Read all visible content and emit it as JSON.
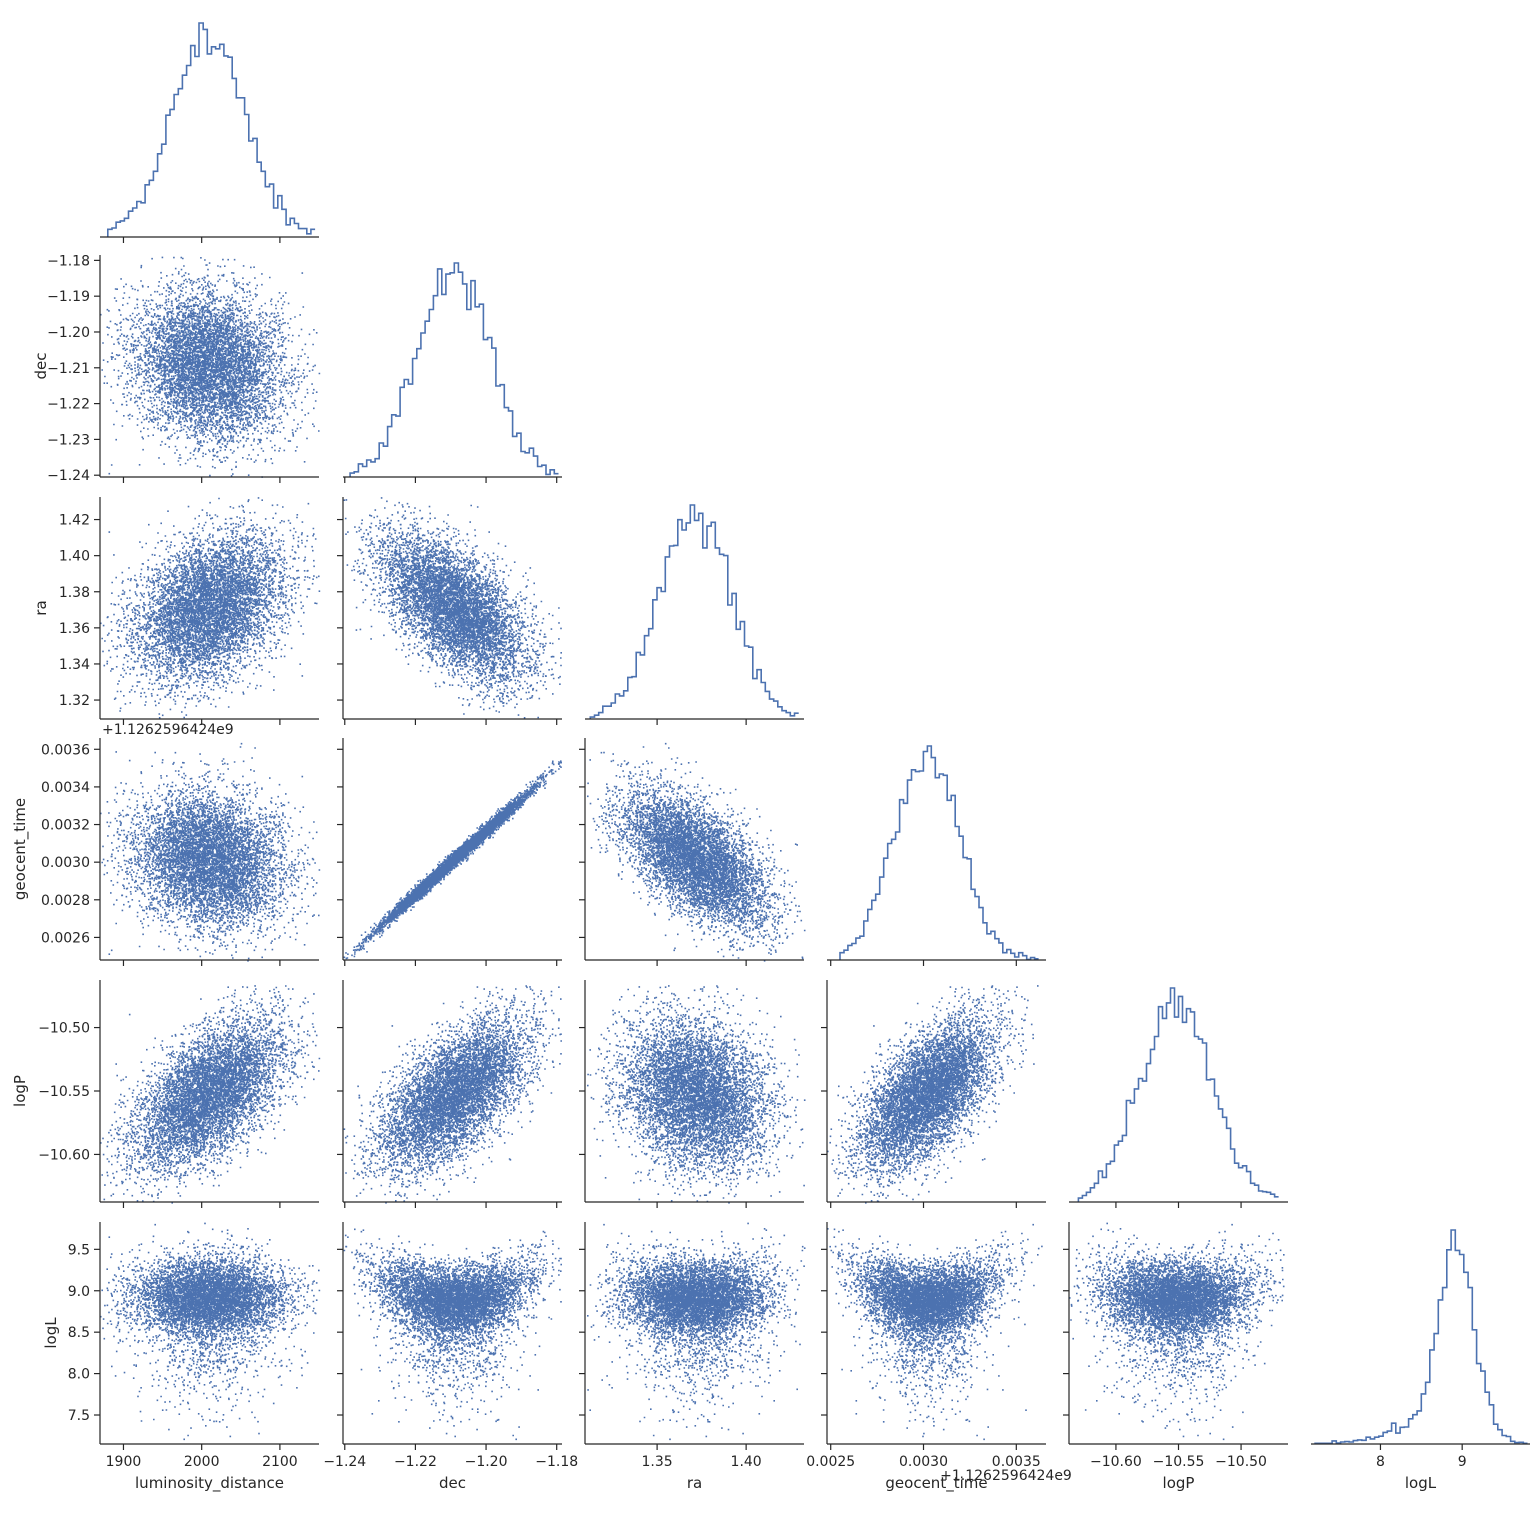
{
  "chart_data": {
    "type": "corner",
    "parameters": [
      "luminosity_distance",
      "dec",
      "ra",
      "geocent_time",
      "logP",
      "logL"
    ],
    "axis_labels": [
      "luminosity_distance",
      "dec",
      "ra",
      "geocent_time",
      "logP",
      "logL"
    ],
    "offset_text": "+1.1262596424e9",
    "colors": {
      "marker": "#4c72b0",
      "axis": "#262626",
      "background": "#ffffff"
    },
    "ranges": [
      [
        1870,
        2150
      ],
      [
        -1.2405,
        -1.1785
      ],
      [
        1.3095,
        1.4325
      ],
      [
        0.00248,
        0.00366
      ],
      [
        -10.6375,
        -10.4625
      ],
      [
        7.15,
        9.83
      ]
    ],
    "ticks": [
      [
        1900,
        2000,
        2100
      ],
      [
        -1.24,
        -1.22,
        -1.2,
        -1.18
      ],
      [
        1.32,
        1.34,
        1.36,
        1.38,
        1.4,
        1.42
      ],
      [
        0.0026,
        0.0028,
        0.003,
        0.0032,
        0.0034,
        0.0036
      ],
      [
        -10.6,
        -10.55,
        -10.5
      ],
      [
        7.5,
        8.0,
        8.5,
        9.0,
        9.5
      ]
    ],
    "tick_labels_x": [
      [
        "1900",
        "2000",
        "2100"
      ],
      [
        "−1.24",
        "−1.22",
        "−1.20",
        "−1.18"
      ],
      [
        "1.35",
        "1.40"
      ],
      [
        "0.0025",
        "0.0030",
        "0.0035"
      ],
      [
        "−10.60",
        "−10.55",
        "−10.50"
      ],
      [
        "8",
        "9"
      ]
    ],
    "tick_values_x": [
      [
        1900,
        2000,
        2100
      ],
      [
        -1.24,
        -1.22,
        -1.2,
        -1.18
      ],
      [
        1.35,
        1.4
      ],
      [
        0.0025,
        0.003,
        0.0035
      ],
      [
        -10.6,
        -10.55,
        -10.5
      ],
      [
        8,
        9
      ]
    ],
    "tick_labels_y": [
      null,
      [
        "−1.24",
        "−1.23",
        "−1.22",
        "−1.21",
        "−1.20",
        "−1.19",
        "−1.18"
      ],
      [
        "1.32",
        "1.34",
        "1.36",
        "1.38",
        "1.40",
        "1.42"
      ],
      [
        "0.0026",
        "0.0028",
        "0.0030",
        "0.0032",
        "0.0034",
        "0.0036"
      ],
      [
        "−10.60",
        "−10.55",
        "−10.50"
      ],
      [
        "7.5",
        "8.0",
        "8.5",
        "9.0",
        "9.5"
      ]
    ],
    "tick_values_y": [
      null,
      [
        -1.24,
        -1.23,
        -1.22,
        -1.21,
        -1.2,
        -1.19,
        -1.18
      ],
      [
        1.32,
        1.34,
        1.36,
        1.38,
        1.4,
        1.42
      ],
      [
        0.0026,
        0.0028,
        0.003,
        0.0032,
        0.0034,
        0.0036
      ],
      [
        -10.6,
        -10.55,
        -10.5
      ],
      [
        7.5,
        8.0,
        8.5,
        9.0,
        9.5
      ]
    ],
    "marginals": [
      {
        "param": "luminosity_distance",
        "type": "step-histogram",
        "bins": [
          1880,
          2145
        ],
        "peak_near": 2000
      },
      {
        "param": "dec",
        "type": "step-histogram",
        "bins": [
          -1.2385,
          -1.1795
        ],
        "peak_near": -1.209
      },
      {
        "param": "ra",
        "type": "step-histogram",
        "bins": [
          1.3125,
          1.4295
        ],
        "peak_near": 1.37
      },
      {
        "param": "geocent_time",
        "type": "step-histogram",
        "bins": [
          0.00255,
          0.00362
        ],
        "peak_near": 0.003
      },
      {
        "param": "logP",
        "type": "step-histogram",
        "bins": [
          -10.63,
          -10.47
        ],
        "peak_near": -10.555
      },
      {
        "param": "logL",
        "type": "step-histogram",
        "bins": [
          7.2,
          9.8
        ],
        "peak_near": 8.85
      }
    ],
    "scatter_summary": {
      "mean": [
        2008,
        -1.209,
        1.371,
        0.00302,
        -10.552,
        8.93
      ],
      "std": [
        48,
        0.0105,
        0.0205,
        0.00018,
        0.029,
        0.33
      ],
      "correlations": {
        "dec_vs_luminosity_distance": -0.15,
        "ra_vs_luminosity_distance": 0.35,
        "ra_vs_dec": -0.55,
        "geocent_time_vs_luminosity_distance": -0.2,
        "geocent_time_vs_dec": 0.98,
        "geocent_time_vs_ra": -0.6,
        "logP_vs_luminosity_distance": 0.55,
        "logP_vs_dec": 0.75,
        "logP_vs_ra": 0.0,
        "logP_vs_geocent_time": 0.7
      }
    }
  }
}
